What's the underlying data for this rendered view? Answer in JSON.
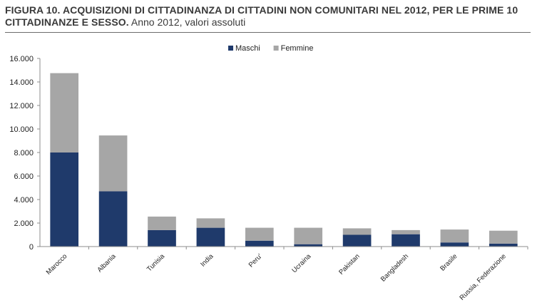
{
  "figure": {
    "title": "FIGURA 10. ACQUISIZIONI DI CITTADINANZA DI CITTADINI NON COMUNITARI NEL 2012, PER LE PRIME 10 CITTADINANZE E SESSO.",
    "subtitle": "Anno 2012, valori assoluti"
  },
  "chart_data": {
    "type": "bar",
    "stacked": true,
    "categories": [
      "Marocco",
      "Albania",
      "Tunisia",
      "India",
      "Peru'",
      "Ucraina",
      "Pakistan",
      "Bangladesh",
      "Brasile",
      "Russia, Federazione"
    ],
    "series": [
      {
        "name": "Maschi",
        "color": "#1f3a6b",
        "values": [
          8000,
          4700,
          1400,
          1600,
          500,
          200,
          1000,
          1050,
          350,
          250
        ]
      },
      {
        "name": "Femmine",
        "color": "#a6a6a6",
        "values": [
          6750,
          4750,
          1150,
          800,
          1100,
          1400,
          550,
          350,
          1100,
          1100
        ]
      }
    ],
    "ylim": [
      0,
      16000
    ],
    "yticks": [
      0,
      2000,
      4000,
      6000,
      8000,
      10000,
      12000,
      14000,
      16000
    ],
    "ytick_labels": [
      "0",
      "2.000",
      "4.000",
      "6.000",
      "8.000",
      "10.000",
      "12.000",
      "14.000",
      "16.000"
    ],
    "grid": false,
    "legend": "top-center"
  }
}
